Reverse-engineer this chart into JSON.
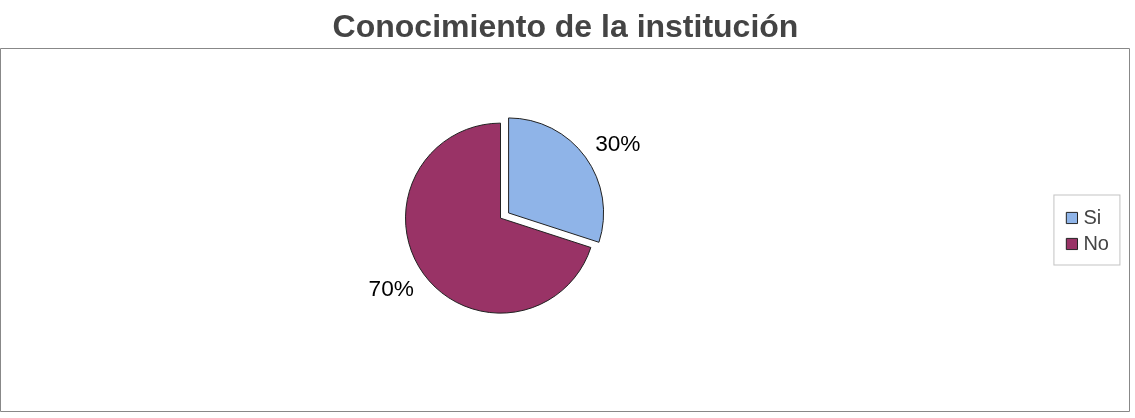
{
  "chart_data": {
    "type": "pie",
    "title": "Conocimiento de la institución",
    "categories": [
      "Si",
      "No"
    ],
    "values": [
      30,
      70
    ],
    "colors": [
      "#8fb4e8",
      "#993366"
    ],
    "value_labels": [
      "30%",
      "70%"
    ],
    "legend": "right"
  }
}
